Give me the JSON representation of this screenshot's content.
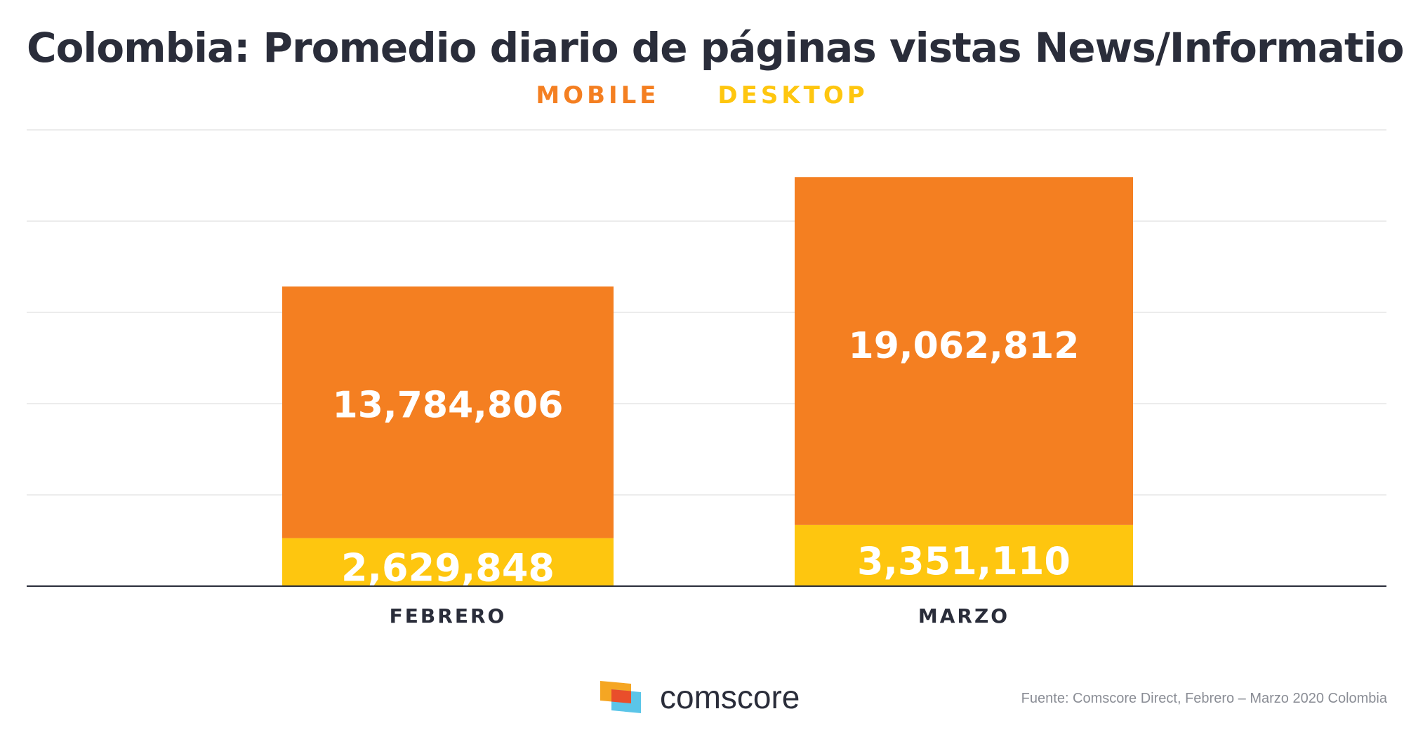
{
  "chart_data": {
    "type": "bar",
    "stacked": true,
    "title": "Colombia: Promedio diario de páginas vistas News/Information",
    "categories": [
      "FEBRERO",
      "MARZO"
    ],
    "series": [
      {
        "name": "DESKTOP",
        "color": "#fec60f",
        "values": [
          2629848,
          3351110
        ],
        "labels": [
          "2,629,848",
          "3,351,110"
        ]
      },
      {
        "name": "MOBILE",
        "color": "#f47f21",
        "values": [
          13784806,
          19062812
        ],
        "labels": [
          "13,784,806",
          "19,062,812"
        ]
      }
    ],
    "ylim": [
      0,
      25000000
    ],
    "grid": true,
    "legend_position": "top-center"
  },
  "footer": {
    "brand": "comscore",
    "logo_icon": "comscore-logo-icon",
    "source": "Fuente: Comscore Direct, Febrero – Marzo 2020 Colombia"
  },
  "colors": {
    "text": "#2a2d3a",
    "grid": "#e6e6e6",
    "axis": "#2a2d3a"
  }
}
